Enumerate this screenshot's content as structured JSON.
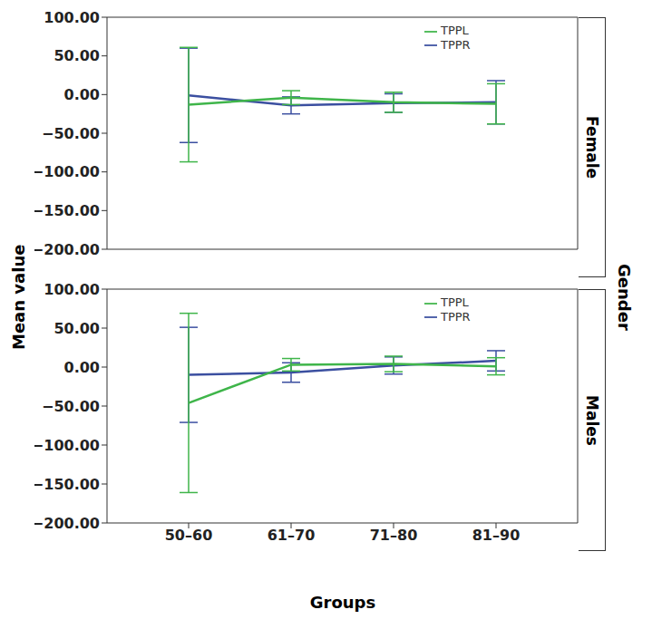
{
  "chart_data": [
    {
      "type": "line",
      "title": "Female",
      "categories": [
        "50–60",
        "61–70",
        "71–80",
        "81–90"
      ],
      "series": [
        {
          "name": "TPPR",
          "color": "#3b4fa0",
          "values": [
            -1,
            -14,
            -11,
            -10
          ],
          "errors": [
            61,
            11,
            12,
            28
          ]
        },
        {
          "name": "TPPL",
          "color": "#3fb54a",
          "values": [
            -13,
            -4,
            -10,
            -12
          ],
          "errors": [
            74,
            9,
            13,
            26
          ]
        }
      ],
      "ylim": [
        -200,
        100
      ],
      "yticks": [
        {
          "value": -200,
          "label": "−200.00"
        },
        {
          "value": -150,
          "label": "−150.00"
        },
        {
          "value": -100,
          "label": "−100.00"
        },
        {
          "value": -50,
          "label": "−50.00"
        },
        {
          "value": 0,
          "label": "0.00"
        },
        {
          "value": 50,
          "label": "50.00"
        },
        {
          "value": 100,
          "label": "100.00"
        }
      ],
      "legend": "upper right",
      "tick_labels": "y"
    },
    {
      "type": "line",
      "title": "Males",
      "categories": [
        "50–60",
        "61–70",
        "71–80",
        "81–90"
      ],
      "series": [
        {
          "name": "TPPR",
          "color": "#3b4fa0",
          "values": [
            -10,
            -7,
            2,
            8
          ],
          "errors": [
            61,
            12.5,
            11,
            13
          ]
        },
        {
          "name": "TPPL",
          "color": "#3fb54a",
          "values": [
            -46,
            3,
            4,
            1
          ],
          "errors": [
            115,
            8,
            10,
            11
          ]
        }
      ],
      "ylim": [
        -200,
        100
      ],
      "yticks": [
        {
          "value": -200,
          "label": "−200.00"
        },
        {
          "value": -150,
          "label": "−150.00"
        },
        {
          "value": -100,
          "label": "−100.00"
        },
        {
          "value": -50,
          "label": "−50.00"
        },
        {
          "value": 0,
          "label": "0.00"
        },
        {
          "value": 50,
          "label": "50.00"
        },
        {
          "value": 100,
          "label": "100.00"
        }
      ],
      "legend": "upper right",
      "tick_labels": true
    }
  ],
  "x_label": "Groups",
  "y_label": "Mean value",
  "facet_label": "Gender"
}
